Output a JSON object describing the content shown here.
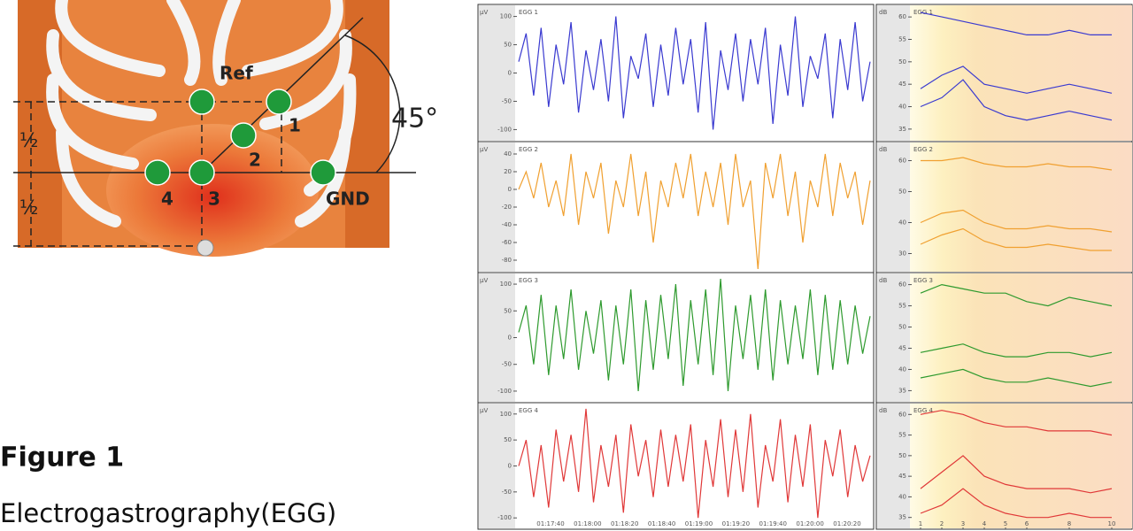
{
  "diagram": {
    "ref": "Ref",
    "angle": "45°",
    "gnd": "GND",
    "half_top": "½",
    "half_bottom": "½",
    "electrodes": [
      "1",
      "2",
      "3",
      "4"
    ]
  },
  "caption": {
    "figure": "Figure 1",
    "text": "Electrogastrography(EGG)"
  },
  "chart_data": [
    {
      "type": "line",
      "title": "EGG 1",
      "unit": "µV",
      "color": "#3a3ad0",
      "ylim": [
        -115,
        115
      ],
      "yticks": [
        100,
        50,
        0,
        -50,
        -100
      ],
      "values": [
        20,
        70,
        -40,
        80,
        -60,
        50,
        -20,
        90,
        -70,
        40,
        -30,
        60,
        -50,
        100,
        -80,
        30,
        -10,
        70,
        -60,
        50,
        -40,
        80,
        -20,
        60,
        -70,
        90,
        -100,
        40,
        -30,
        70,
        -50,
        60,
        -20,
        80,
        -90,
        50,
        -40,
        100,
        -60,
        30,
        -10,
        70,
        -80,
        60,
        -30,
        90,
        -50,
        20
      ]
    },
    {
      "type": "line",
      "title": "EGG 2",
      "unit": "µV",
      "color": "#f0a030",
      "ylim": [
        -90,
        50
      ],
      "yticks": [
        40,
        20,
        0,
        -20,
        -40,
        -60,
        -80
      ],
      "values": [
        0,
        20,
        -10,
        30,
        -20,
        10,
        -30,
        40,
        -40,
        20,
        -10,
        30,
        -50,
        10,
        -20,
        40,
        -30,
        20,
        -60,
        10,
        -20,
        30,
        -10,
        40,
        -30,
        20,
        -20,
        30,
        -40,
        40,
        -20,
        10,
        -90,
        30,
        -10,
        40,
        -30,
        20,
        -60,
        10,
        -20,
        40,
        -30,
        30,
        -10,
        20,
        -40,
        10
      ]
    },
    {
      "type": "line",
      "title": "EGG 3",
      "unit": "µV",
      "color": "#2e9a2e",
      "ylim": [
        -115,
        115
      ],
      "yticks": [
        100,
        50,
        0,
        -50,
        -100
      ],
      "values": [
        10,
        60,
        -50,
        80,
        -70,
        60,
        -40,
        90,
        -60,
        50,
        -30,
        70,
        -80,
        60,
        -50,
        90,
        -100,
        70,
        -60,
        80,
        -40,
        100,
        -90,
        70,
        -50,
        90,
        -70,
        110,
        -100,
        60,
        -40,
        80,
        -60,
        90,
        -80,
        70,
        -50,
        60,
        -40,
        90,
        -70,
        80,
        -60,
        70,
        -50,
        60,
        -30,
        40
      ]
    },
    {
      "type": "line",
      "title": "EGG 4",
      "unit": "µV",
      "color": "#e03838",
      "ylim": [
        -115,
        115
      ],
      "yticks": [
        100,
        50,
        0,
        -50,
        -100
      ],
      "time_labels": [
        "01:17:40",
        "01:18:00",
        "01:18:20",
        "01:18:40",
        "01:19:00",
        "01:19:20",
        "01:19:40",
        "01:20:00",
        "01:20:20"
      ],
      "values": [
        0,
        50,
        -60,
        40,
        -80,
        70,
        -30,
        60,
        -50,
        110,
        -70,
        40,
        -40,
        60,
        -90,
        80,
        -20,
        50,
        -60,
        70,
        -40,
        60,
        -30,
        80,
        -100,
        50,
        -40,
        90,
        -60,
        70,
        -50,
        100,
        -80,
        40,
        -30,
        90,
        -70,
        60,
        -40,
        80,
        -100,
        50,
        -20,
        70,
        -60,
        40,
        -30,
        20
      ]
    },
    {
      "type": "spectrum",
      "title": "EGG 1",
      "unit": "dB",
      "ylim": [
        33,
        62
      ],
      "yticks": [
        60,
        55,
        50,
        45,
        40,
        35
      ],
      "xlim": [
        0.5,
        11
      ],
      "x": [
        1,
        2,
        3,
        4,
        5,
        6,
        7,
        8,
        9,
        10
      ],
      "series": [
        {
          "color": "#3a3ad0",
          "values": [
            61,
            60,
            59,
            58,
            57,
            56,
            56,
            57,
            56,
            56
          ]
        },
        {
          "color": "#3a3ad0",
          "values": [
            44,
            47,
            49,
            45,
            44,
            43,
            44,
            45,
            44,
            43
          ]
        },
        {
          "color": "#3a3ad0",
          "values": [
            40,
            42,
            46,
            40,
            38,
            37,
            38,
            39,
            38,
            37
          ]
        }
      ]
    },
    {
      "type": "spectrum",
      "title": "EGG 2",
      "unit": "dB",
      "ylim": [
        25,
        65
      ],
      "yticks": [
        60,
        50,
        40,
        30
      ],
      "xlim": [
        0.5,
        11
      ],
      "x": [
        1,
        2,
        3,
        4,
        5,
        6,
        7,
        8,
        9,
        10
      ],
      "series": [
        {
          "color": "#f0a030",
          "values": [
            60,
            60,
            61,
            59,
            58,
            58,
            59,
            58,
            58,
            57
          ]
        },
        {
          "color": "#f0a030",
          "values": [
            40,
            43,
            44,
            40,
            38,
            38,
            39,
            38,
            38,
            37
          ]
        },
        {
          "color": "#f0a030",
          "values": [
            33,
            36,
            38,
            34,
            32,
            32,
            33,
            32,
            31,
            31
          ]
        }
      ]
    },
    {
      "type": "spectrum",
      "title": "EGG 3",
      "unit": "dB",
      "ylim": [
        33,
        62
      ],
      "yticks": [
        60,
        55,
        50,
        45,
        40,
        35
      ],
      "xlim": [
        0.5,
        11
      ],
      "x": [
        1,
        2,
        3,
        4,
        5,
        6,
        7,
        8,
        9,
        10
      ],
      "series": [
        {
          "color": "#2e9a2e",
          "values": [
            58,
            60,
            59,
            58,
            58,
            56,
            55,
            57,
            56,
            55
          ]
        },
        {
          "color": "#2e9a2e",
          "values": [
            44,
            45,
            46,
            44,
            43,
            43,
            44,
            44,
            43,
            44
          ]
        },
        {
          "color": "#2e9a2e",
          "values": [
            38,
            39,
            40,
            38,
            37,
            37,
            38,
            37,
            36,
            37
          ]
        }
      ]
    },
    {
      "type": "spectrum",
      "title": "EGG 4",
      "unit": "dB",
      "ylim": [
        33,
        62
      ],
      "yticks": [
        60,
        55,
        50,
        45,
        40,
        35
      ],
      "xlim": [
        0.5,
        11
      ],
      "x": [
        1,
        2,
        3,
        4,
        5,
        6,
        7,
        8,
        9,
        10
      ],
      "xticks": [
        1,
        2,
        3,
        4,
        5,
        6,
        8,
        10
      ],
      "series": [
        {
          "color": "#e03838",
          "values": [
            60,
            61,
            60,
            58,
            57,
            57,
            56,
            56,
            56,
            55
          ]
        },
        {
          "color": "#e03838",
          "values": [
            42,
            46,
            50,
            45,
            43,
            42,
            42,
            42,
            41,
            42
          ]
        },
        {
          "color": "#e03838",
          "values": [
            36,
            38,
            42,
            38,
            36,
            35,
            35,
            36,
            35,
            35
          ]
        }
      ]
    }
  ]
}
